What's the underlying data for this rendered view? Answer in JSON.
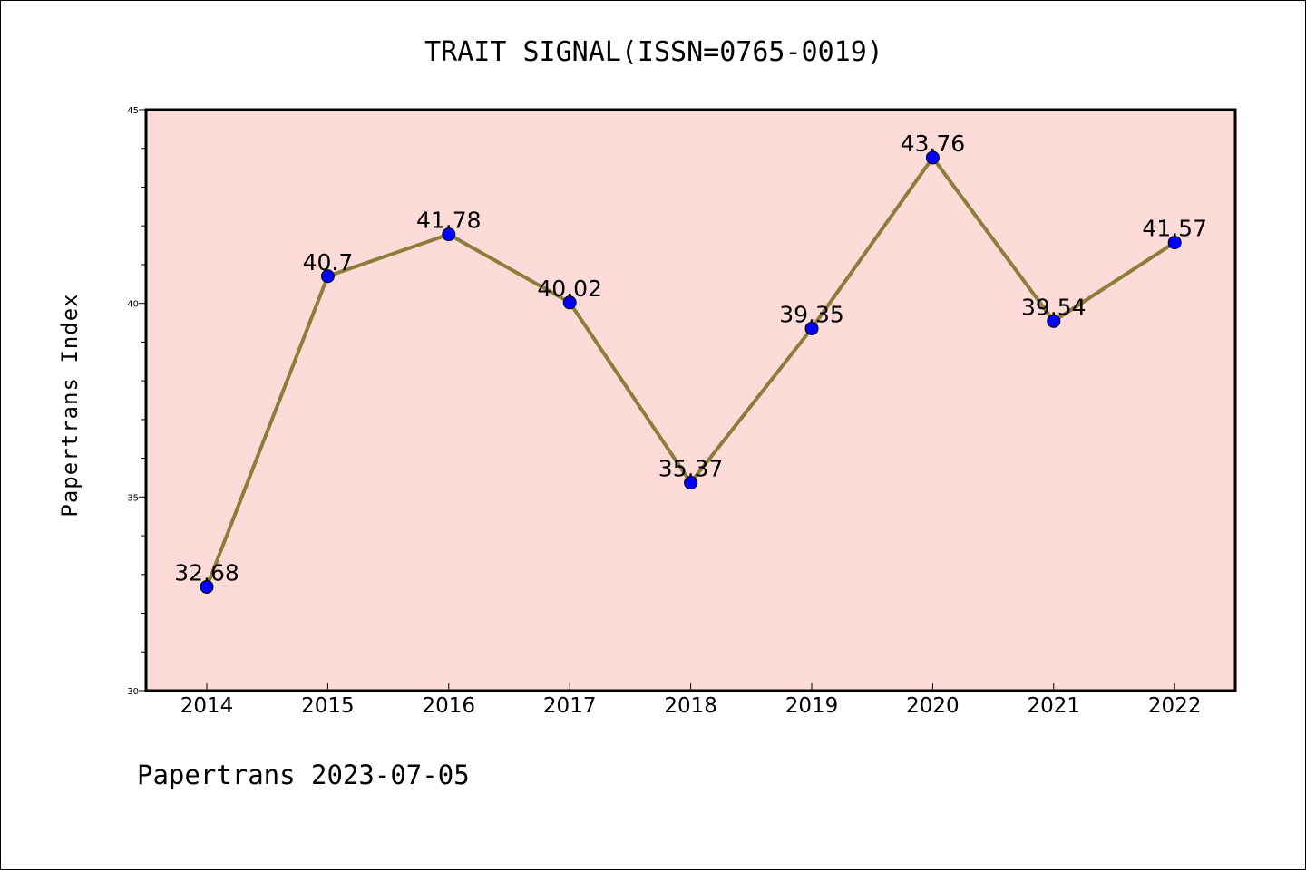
{
  "chart_data": {
    "type": "line",
    "title": "TRAIT SIGNAL(ISSN=0765-0019)",
    "xlabel": "",
    "ylabel": "Papertrans Index",
    "categories": [
      "2014",
      "2015",
      "2016",
      "2017",
      "2018",
      "2019",
      "2020",
      "2021",
      "2022"
    ],
    "values": [
      32.68,
      40.7,
      41.78,
      40.02,
      35.37,
      39.35,
      43.76,
      39.54,
      41.57
    ],
    "value_labels": [
      "32.68",
      "40.7",
      "41.78",
      "40.02",
      "35.37",
      "39.35",
      "43.76",
      "39.54",
      "41.57"
    ],
    "ylim": [
      30,
      45
    ],
    "yticks": [
      30,
      35,
      40,
      45
    ],
    "ytick_labels": [
      "30",
      "35",
      "40",
      "45"
    ],
    "grid": false,
    "legend": "none",
    "footer": "Papertrans 2023-07-05",
    "colors": {
      "plot_background": "#fddbd8",
      "line": "#8b7d3a",
      "marker": "#0000ff"
    }
  }
}
